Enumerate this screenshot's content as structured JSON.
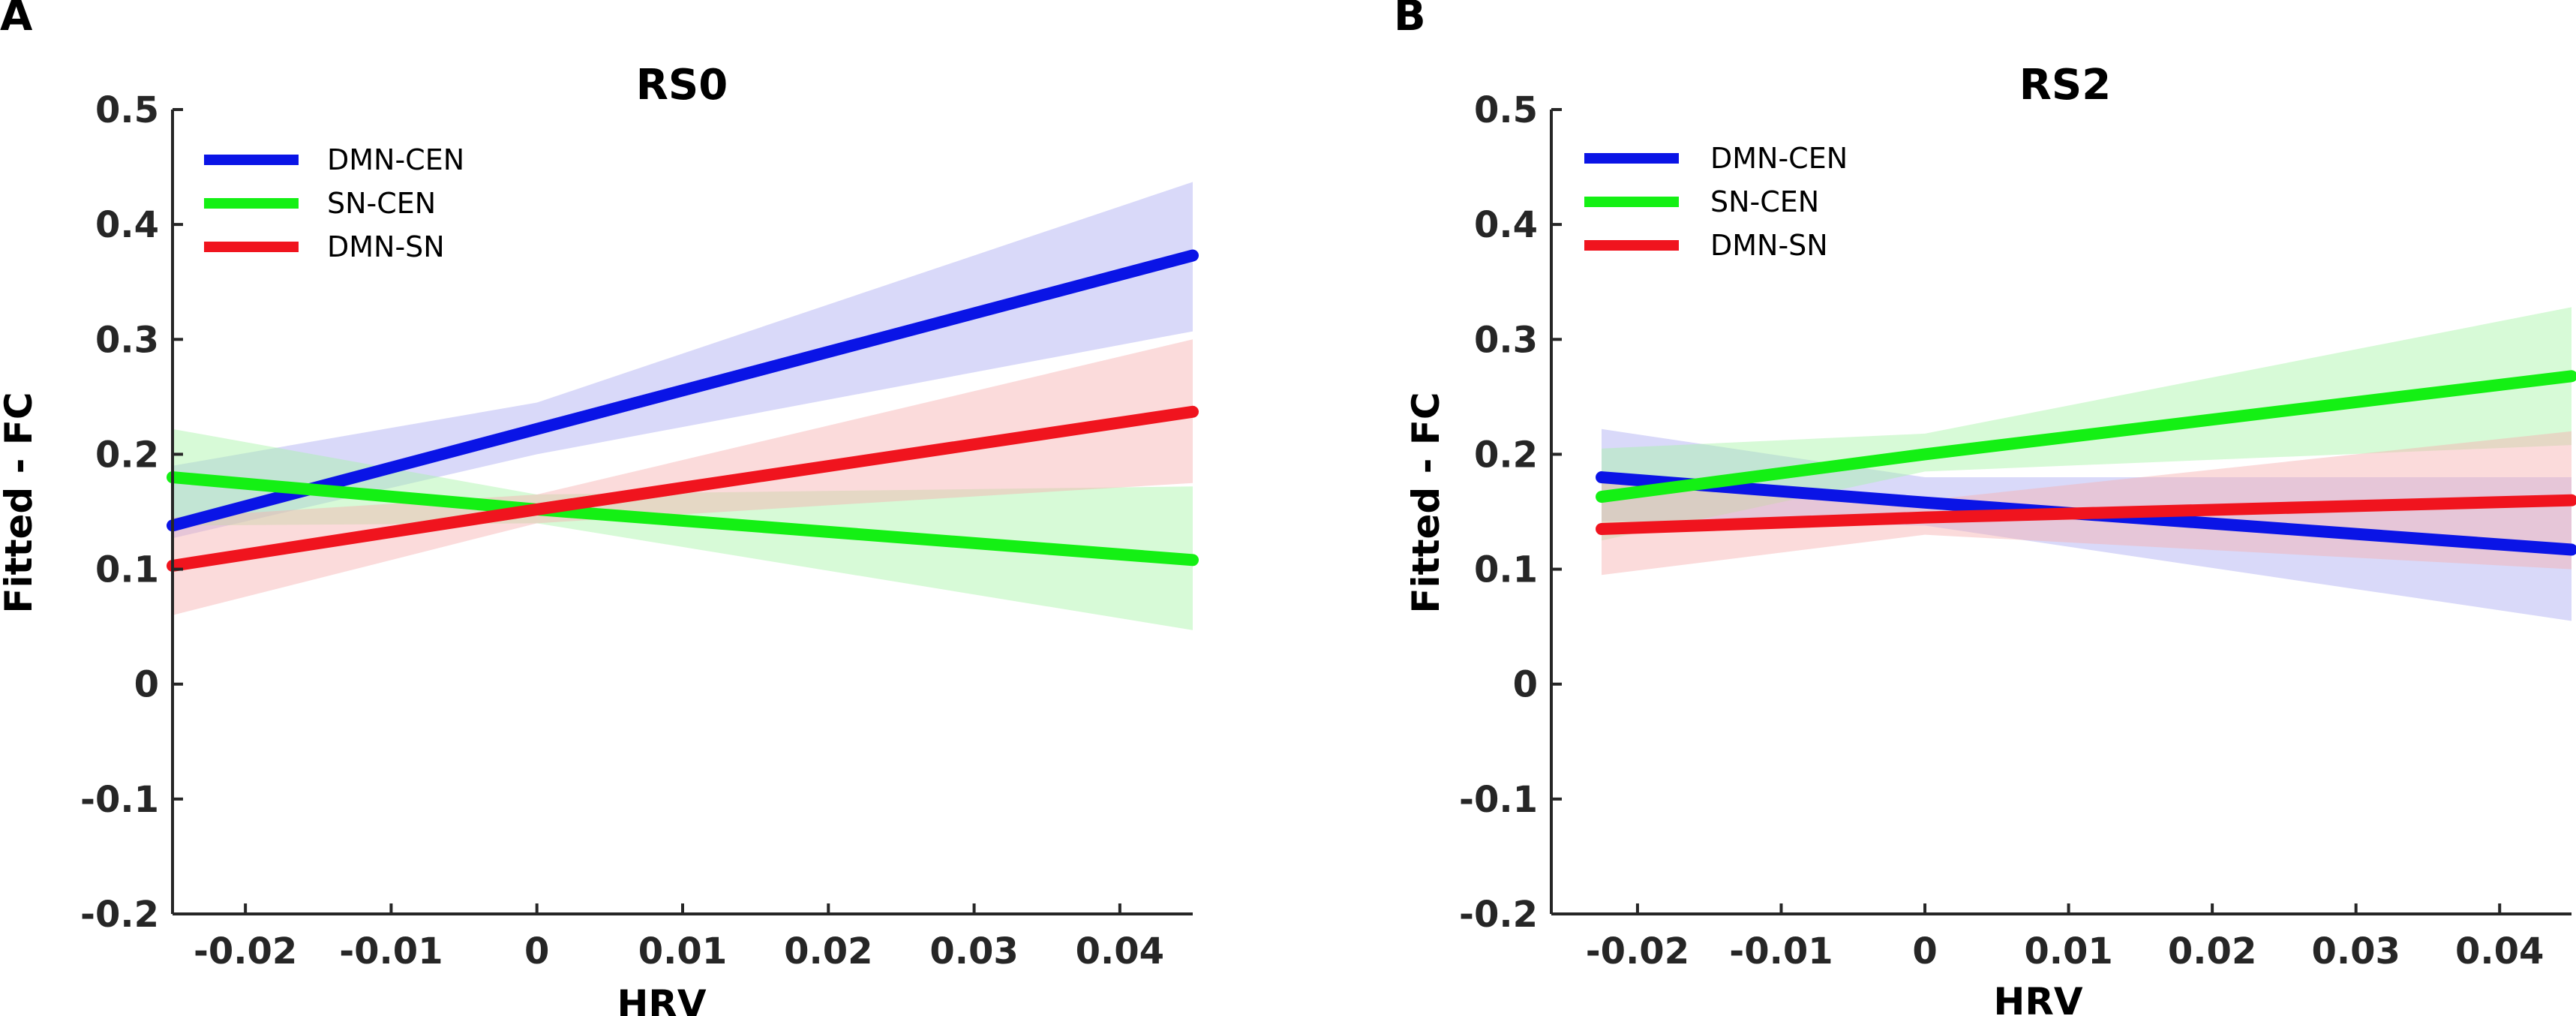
{
  "chart_data": [
    {
      "panel_label": "A",
      "type": "line",
      "title": "RS0",
      "xlabel": "HRV",
      "ylabel": "Fitted - FC",
      "xlim": [
        -0.025,
        0.045
      ],
      "ylim": [
        -0.2,
        0.5
      ],
      "xticks": [
        -0.02,
        -0.01,
        0,
        0.01,
        0.02,
        0.03,
        0.04
      ],
      "xtick_labels": [
        "-0.02",
        "-0.01",
        "0",
        "0.01",
        "0.02",
        "0.03",
        "0.04"
      ],
      "yticks": [
        -0.2,
        -0.1,
        0,
        0.1,
        0.2,
        0.3,
        0.4,
        0.5
      ],
      "ytick_labels": [
        "-0.2",
        "-0.1",
        "0",
        "0.1",
        "0.2",
        "0.3",
        "0.4",
        "0.5"
      ],
      "legend_position": "top-left",
      "series": [
        {
          "name": "DMN-CEN",
          "color": "#0a14e6",
          "band_color": "#aaaaf2",
          "x": [
            -0.025,
            0.0,
            0.045
          ],
          "y": [
            0.138,
            0.222,
            0.373
          ],
          "lower": [
            0.127,
            0.2,
            0.307
          ],
          "upper": [
            0.19,
            0.245,
            0.437
          ]
        },
        {
          "name": "SN-CEN",
          "color": "#14f014",
          "band_color": "#a6f5a6",
          "x": [
            -0.025,
            0.0,
            0.045
          ],
          "y": [
            0.18,
            0.152,
            0.108
          ],
          "lower": [
            0.138,
            0.14,
            0.047
          ],
          "upper": [
            0.222,
            0.165,
            0.172
          ]
        },
        {
          "name": "DMN-SN",
          "color": "#f0141e",
          "band_color": "#f7b0b0",
          "x": [
            -0.025,
            0.0,
            0.045
          ],
          "y": [
            0.103,
            0.152,
            0.237
          ],
          "lower": [
            0.06,
            0.14,
            0.175
          ],
          "upper": [
            0.145,
            0.165,
            0.3
          ]
        }
      ]
    },
    {
      "panel_label": "B",
      "type": "line",
      "title": "RS2",
      "xlabel": "HRV",
      "ylabel": "Fitted - FC",
      "xlim": [
        -0.026,
        0.045
      ],
      "ylim": [
        -0.2,
        0.5
      ],
      "xticks": [
        -0.02,
        -0.01,
        0,
        0.01,
        0.02,
        0.03,
        0.04
      ],
      "xtick_labels": [
        "-0.02",
        "-0.01",
        "0",
        "0.01",
        "0.02",
        "0.03",
        "0.04"
      ],
      "yticks": [
        -0.2,
        -0.1,
        0,
        0.1,
        0.2,
        0.3,
        0.4,
        0.5
      ],
      "ytick_labels": [
        "-0.2",
        "-0.1",
        "0",
        "0.1",
        "0.2",
        "0.3",
        "0.4",
        "0.5"
      ],
      "legend_position": "top-left",
      "series": [
        {
          "name": "DMN-CEN",
          "color": "#0a14e6",
          "band_color": "#aaaaf2",
          "x": [
            -0.0225,
            0.0,
            0.045
          ],
          "y": [
            0.18,
            0.158,
            0.117
          ],
          "lower": [
            0.142,
            0.138,
            0.055
          ],
          "upper": [
            0.222,
            0.18,
            0.18
          ]
        },
        {
          "name": "SN-CEN",
          "color": "#14f014",
          "band_color": "#a6f5a6",
          "x": [
            -0.0225,
            0.0,
            0.045
          ],
          "y": [
            0.163,
            0.2,
            0.268
          ],
          "lower": [
            0.125,
            0.185,
            0.208
          ],
          "upper": [
            0.205,
            0.218,
            0.328
          ]
        },
        {
          "name": "DMN-SN",
          "color": "#f0141e",
          "band_color": "#f7b0b0",
          "x": [
            -0.0225,
            0.0,
            0.045
          ],
          "y": [
            0.135,
            0.145,
            0.16
          ],
          "lower": [
            0.095,
            0.13,
            0.1
          ],
          "upper": [
            0.175,
            0.16,
            0.22
          ]
        }
      ]
    }
  ]
}
